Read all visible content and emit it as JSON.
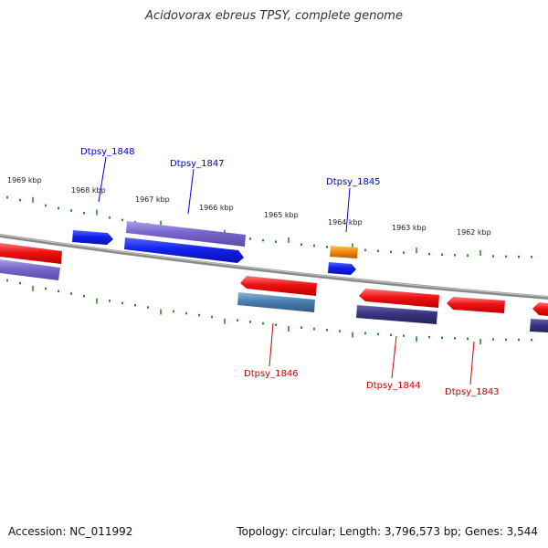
{
  "title": "Acidovorax ebreus TPSY, complete genome",
  "accession": "Accession: NC_011992",
  "topology": "Topology: circular; Length: 3,796,573 bp; Genes: 3,544",
  "colors": {
    "backbone": "#8a8a8a",
    "tick": "#2e8b2e",
    "forward_label": "#0000cc",
    "reverse_label": "#cc0000",
    "gene_red": "#ee1111",
    "gene_blue": "#1122ee",
    "gene_purple": "#7766cc",
    "gene_dark_purple": "#3a3580",
    "gene_steel": "#4a7fb0",
    "gene_orange": "#f08a10"
  },
  "kbp_ticks": [
    "1969 kbp",
    "1968 kbp",
    "1967 kbp",
    "1966 kbp",
    "1965 kbp",
    "1964 kbp",
    "1963 kbp",
    "1962 kbp"
  ],
  "gene_labels": [
    {
      "text": "Dtpsy_1848",
      "strand": "forward"
    },
    {
      "text": "Dtpsy_1847",
      "strand": "forward"
    },
    {
      "text": "Dtpsy_1845",
      "strand": "forward"
    },
    {
      "text": "Dtpsy_1846",
      "strand": "reverse"
    },
    {
      "text": "Dtpsy_1844",
      "strand": "reverse"
    },
    {
      "text": "Dtpsy_1843",
      "strand": "reverse"
    }
  ]
}
